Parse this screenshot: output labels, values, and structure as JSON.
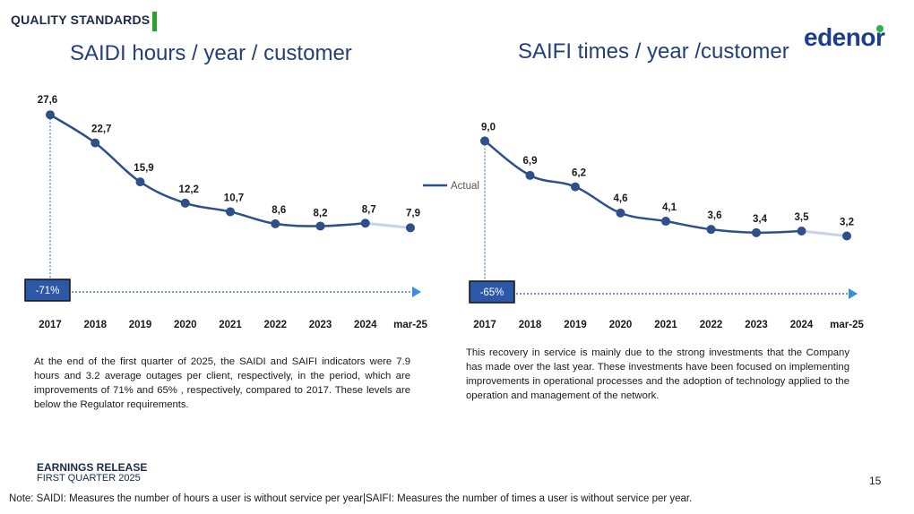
{
  "header": {
    "section_title": "QUALITY STANDARDS",
    "brand": "edenor",
    "accent_color": "#2ca02c",
    "brand_color": "#1f3d8f"
  },
  "chart_data": [
    {
      "type": "line",
      "title": "SAIDI hours / year / customer",
      "categories": [
        "2017",
        "2018",
        "2019",
        "2020",
        "2021",
        "2022",
        "2023",
        "2024",
        "mar-25"
      ],
      "values": [
        27.6,
        22.7,
        15.9,
        12.2,
        10.7,
        8.6,
        8.2,
        8.7,
        7.9
      ],
      "data_labels": [
        "27,6",
        "22,7",
        "15,9",
        "12,2",
        "10,7",
        "8,6",
        "8,2",
        "8,7",
        "7,9"
      ],
      "ylim": [
        0,
        32
      ],
      "xlabel": "",
      "ylabel": "",
      "change_label": "-71%",
      "series_color": "#2d4f8a"
    },
    {
      "type": "line",
      "title": "SAIFI times / year /customer",
      "categories": [
        "2017",
        "2018",
        "2019",
        "2020",
        "2021",
        "2022",
        "2023",
        "2024",
        "mar-25"
      ],
      "values": [
        9.0,
        6.9,
        6.2,
        4.6,
        4.1,
        3.6,
        3.4,
        3.5,
        3.2
      ],
      "data_labels": [
        "9,0",
        "6,9",
        "6,2",
        "4,6",
        "4,1",
        "3,6",
        "3,4",
        "3,5",
        "3,2"
      ],
      "ylim": [
        0,
        10.5
      ],
      "xlabel": "",
      "ylabel": "",
      "legend": [
        "Actual"
      ],
      "change_label": "-65%",
      "series_color": "#2d4f8a"
    }
  ],
  "text": {
    "left_paragraph": "At the end of the first quarter of 2025, the SAIDI and SAIFI indicators were 7.9 hours and 3.2 average outages per client, respectively, in the period, which are improvements of 71% and 65% , respectively, compared to 2017. These levels are  below the Regulator requirements.",
    "right_paragraph": "This recovery in service is mainly due to the strong investments that the Company has made over the last year. These investments have been focused on implementing improvements in operational processes and the adoption of technology applied to the operation and management of the network."
  },
  "footer": {
    "title": "EARNINGS RELEASE",
    "subtitle": "FIRST QUARTER 2025",
    "page_number": "15",
    "note": "Note: SAIDI: Measures the number of hours a user is without service per year|SAIFI: Measures the number of times a user is without service per year."
  }
}
